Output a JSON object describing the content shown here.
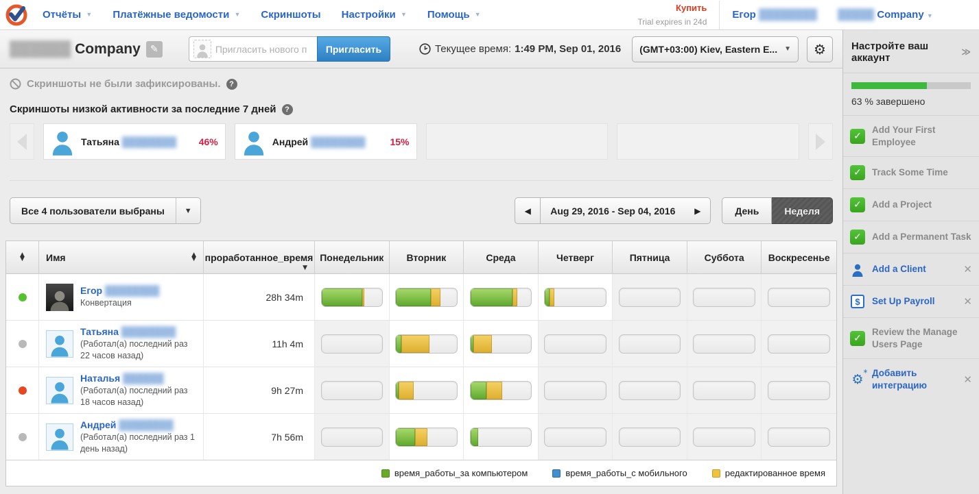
{
  "nav": {
    "items": [
      {
        "label": "Отчёты",
        "caret": true
      },
      {
        "label": "Платёжные ведомости",
        "caret": true
      },
      {
        "label": "Скриншоты",
        "caret": false
      },
      {
        "label": "Настройки",
        "caret": true
      },
      {
        "label": "Помощь",
        "caret": true
      }
    ],
    "buy_label": "Купить",
    "trial_label": "Trial expires in 24d",
    "user_name": "Егор",
    "user_surname_blurred": "████████",
    "account_company_blurred": "█████",
    "account_company": "Company"
  },
  "header": {
    "company_blurred": "██████",
    "company_name": "Company",
    "invite_placeholder": "Пригласить нового п",
    "invite_button": "Пригласить",
    "time_label": "Текущее время:",
    "time_value": "1:49 PM, Sep 01, 2016",
    "timezone": "(GMT+03:00) Kiev, Eastern E...",
    "timezone_caret": "▼",
    "gear_icon": "⚙",
    "edit_icon": "✎"
  },
  "notice": {
    "text": "Скриншоты не были зафиксированы.",
    "help": "?"
  },
  "low_activity": {
    "title": "Скриншоты низкой активности за последние 7 дней",
    "help": "?",
    "cards": [
      {
        "name": "Татьяна",
        "surname_blurred": "████████",
        "percent": 46,
        "percent_label": "46%"
      },
      {
        "name": "Андрей",
        "surname_blurred": "████████",
        "percent": 15,
        "percent_label": "15%"
      }
    ],
    "empty_cards": 2
  },
  "filters": {
    "users_selected": "Все 4 пользователи выбраны",
    "date_range": "Aug 29, 2016 - Sep 04, 2016",
    "day_label": "День",
    "week_label": "Неделя"
  },
  "table": {
    "name_header": "Имя",
    "time_header": "проработанное_время",
    "day_headers": [
      "Понедельник",
      "Вторник",
      "Среда",
      "Четверг",
      "Пятница",
      "Суббота",
      "Воскресенье"
    ],
    "rows": [
      {
        "status": "green",
        "avatar": "photo",
        "name": "Егор",
        "surname_blurred": "████████",
        "subtitle": "Конвертация",
        "time": "28h 34m",
        "days": [
          {
            "green": 67,
            "yellow": 4
          },
          {
            "green": 57,
            "yellow": 16
          },
          {
            "green": 69,
            "yellow": 8
          },
          {
            "green": 8,
            "yellow": 8
          },
          null,
          null,
          null
        ]
      },
      {
        "status": "gray",
        "avatar": "placeholder",
        "name": "Татьяна",
        "surname_blurred": "████████",
        "subtitle": "(Работал(а) последний раз 22 часов назад)",
        "time": "11h 4m",
        "days": [
          null,
          {
            "green": 9,
            "yellow": 46
          },
          {
            "green": 5,
            "yellow": 30
          },
          null,
          null,
          null,
          null
        ]
      },
      {
        "status": "red",
        "avatar": "placeholder",
        "name": "Наталья",
        "surname_blurred": "██████",
        "subtitle": "(Работал(а) последний раз 18 часов назад)",
        "time": "9h 27m",
        "days": [
          null,
          {
            "green": 4,
            "yellow": 25
          },
          {
            "green": 26,
            "yellow": 26
          },
          null,
          null,
          null,
          null
        ]
      },
      {
        "status": "gray",
        "avatar": "placeholder",
        "name": "Андрей",
        "surname_blurred": "████████",
        "subtitle": "(Работал(а) последний раз 1 день назад)",
        "time": "7h 56m",
        "days": [
          null,
          {
            "green": 31,
            "yellow": 21
          },
          {
            "green": 13,
            "yellow": 0
          },
          null,
          null,
          null,
          null
        ]
      }
    ]
  },
  "legend": [
    {
      "label": "время_работы_за компьютером",
      "color_class": "green",
      "color": "#6aaa28"
    },
    {
      "label": "время_работы_с мобильного",
      "color_class": "blue",
      "color": "#3f8fd1"
    },
    {
      "label": "редактированное время",
      "color_class": "yellow",
      "color": "#eec43f"
    }
  ],
  "sidebar": {
    "title": "Настройте ваш аккаунт",
    "more_icon": "≫",
    "progress_percent": 63,
    "progress_label": "63 % завершено",
    "items": [
      {
        "label": "Add Your First Employee",
        "type": "done"
      },
      {
        "label": "Track Some Time",
        "type": "done"
      },
      {
        "label": "Add a Project",
        "type": "done"
      },
      {
        "label": "Add a Permanent Task",
        "type": "done"
      },
      {
        "label": "Add a Client",
        "type": "link",
        "icon": "client-icon",
        "closable": true
      },
      {
        "label": "Set Up Payroll",
        "type": "link",
        "icon": "payroll-icon",
        "closable": true
      },
      {
        "label": "Review the Manage Users Page",
        "type": "done"
      },
      {
        "label": "Добавить интеграцию",
        "type": "link",
        "icon": "integration-icon",
        "closable": true
      }
    ]
  },
  "colors": {
    "accent_blue": "#2a66c5",
    "alert_red": "#cf1f42",
    "bar_green": "#5da72c",
    "bar_yellow": "#dcae2e",
    "progress_green": "#3eb93e",
    "status_green": "#55c130",
    "status_red": "#e8481f",
    "status_gray": "#b9b9b9"
  }
}
